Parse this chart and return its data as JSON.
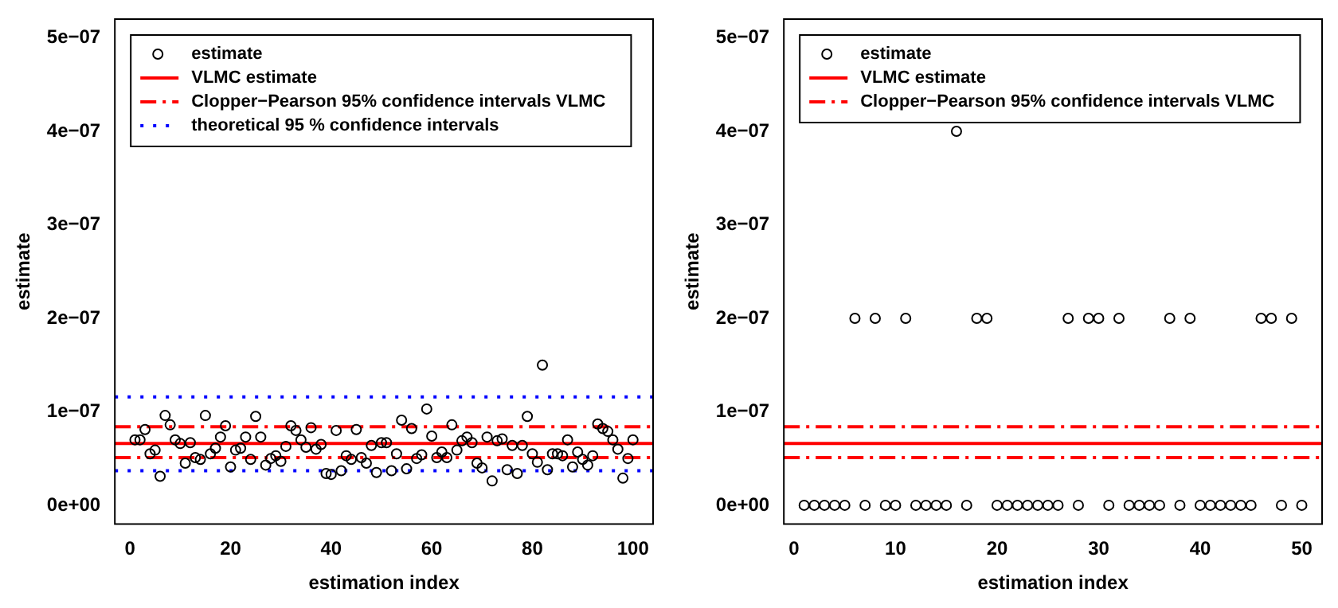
{
  "chart_data": [
    {
      "type": "scatter",
      "xlabel": "estimation index",
      "ylabel": "estimate",
      "marker": "circle",
      "grid": false,
      "legend": "top left",
      "x": [
        1,
        2,
        3,
        4,
        5,
        6,
        7,
        8,
        9,
        10,
        11,
        12,
        13,
        14,
        15,
        16,
        17,
        18,
        19,
        20,
        21,
        22,
        23,
        24,
        25,
        26,
        27,
        28,
        29,
        30,
        31,
        32,
        33,
        34,
        35,
        36,
        37,
        38,
        39,
        40,
        41,
        42,
        43,
        44,
        45,
        46,
        47,
        48,
        49,
        50,
        51,
        52,
        53,
        54,
        55,
        56,
        57,
        58,
        59,
        60,
        61,
        62,
        63,
        64,
        65,
        66,
        67,
        68,
        69,
        70,
        71,
        72,
        73,
        74,
        75,
        76,
        77,
        78,
        79,
        80,
        81,
        82,
        83,
        84,
        85,
        86,
        87,
        88,
        89,
        90,
        91,
        92,
        93,
        94,
        95,
        96,
        97,
        98,
        99,
        100
      ],
      "series": [
        {
          "name": "estimate",
          "color": "#000000",
          "values": [
            7e-08,
            7e-08,
            8.1e-08,
            5.5e-08,
            5.9e-08,
            3.1e-08,
            9.6e-08,
            8.6e-08,
            7e-08,
            6.6e-08,
            4.5e-08,
            6.7e-08,
            5.1e-08,
            4.9e-08,
            9.6e-08,
            5.5e-08,
            6.1e-08,
            7.3e-08,
            8.5e-08,
            4.1e-08,
            5.9e-08,
            6.1e-08,
            7.3e-08,
            4.9e-08,
            9.5e-08,
            7.3e-08,
            4.3e-08,
            5e-08,
            5.3e-08,
            4.7e-08,
            6.3e-08,
            8.5e-08,
            8e-08,
            7e-08,
            6.2e-08,
            8.3e-08,
            6e-08,
            6.5e-08,
            3.4e-08,
            3.3e-08,
            8e-08,
            3.7e-08,
            5.3e-08,
            4.9e-08,
            8.1e-08,
            5.1e-08,
            4.5e-08,
            6.4e-08,
            3.5e-08,
            6.7e-08,
            6.7e-08,
            3.7e-08,
            5.5e-08,
            9.1e-08,
            3.9e-08,
            8.2e-08,
            5e-08,
            5.4e-08,
            1.03e-07,
            7.4e-08,
            5.1e-08,
            5.7e-08,
            5.1e-08,
            8.6e-08,
            5.9e-08,
            6.9e-08,
            7.3e-08,
            6.7e-08,
            4.5e-08,
            4e-08,
            7.3e-08,
            2.6e-08,
            6.9e-08,
            7.1e-08,
            3.8e-08,
            6.4e-08,
            3.4e-08,
            6.4e-08,
            9.5e-08,
            5.5e-08,
            4.6e-08,
            1.5e-07,
            3.8e-08,
            5.5e-08,
            5.5e-08,
            5.3e-08,
            7e-08,
            4.1e-08,
            5.7e-08,
            4.9e-08,
            4.3e-08,
            5.3e-08,
            8.7e-08,
            8.2e-08,
            7.9e-08,
            7e-08,
            6e-08,
            2.9e-08,
            5e-08,
            7e-08
          ]
        }
      ],
      "xlim": [
        -3,
        104
      ],
      "xticks": [
        0,
        20,
        40,
        60,
        80,
        100
      ],
      "ylim": [
        -2e-08,
        5.2e-07
      ],
      "yticks": [
        {
          "value": 0,
          "label": "0e+00"
        },
        {
          "value": 1e-07,
          "label": "1e−07"
        },
        {
          "value": 2e-07,
          "label": "2e−07"
        },
        {
          "value": 3e-07,
          "label": "3e−07"
        },
        {
          "value": 4e-07,
          "label": "4e−07"
        },
        {
          "value": 5e-07,
          "label": "5e−07"
        }
      ],
      "ref_lines": [
        {
          "axis": "y",
          "value": 6.6e-08,
          "label": "VLMC estimate",
          "color": "#ff0000",
          "line_style": "solid"
        },
        {
          "axis": "y",
          "value": 8.4e-08,
          "label": "Clopper−Pearson 95% confidence intervals VLMC",
          "color": "#ff0000",
          "line_style": "dashdot"
        },
        {
          "axis": "y",
          "value": 5.1e-08,
          "label": null,
          "color": "#ff0000",
          "line_style": "dashdot"
        },
        {
          "axis": "y",
          "value": 1.16e-07,
          "label": "theoretical 95 % confidence intervals",
          "color": "#0000ff",
          "line_style": "dotted"
        },
        {
          "axis": "y",
          "value": 3.7e-08,
          "label": null,
          "color": "#0000ff",
          "line_style": "dotted"
        }
      ]
    },
    {
      "type": "scatter",
      "xlabel": "estimation index",
      "ylabel": "estimate",
      "marker": "circle",
      "grid": false,
      "legend": "top left",
      "x": [
        1,
        2,
        3,
        4,
        5,
        6,
        7,
        8,
        9,
        10,
        11,
        12,
        13,
        14,
        15,
        16,
        17,
        18,
        19,
        20,
        21,
        22,
        23,
        24,
        25,
        26,
        27,
        28,
        29,
        30,
        31,
        32,
        33,
        34,
        35,
        36,
        37,
        38,
        39,
        40,
        41,
        42,
        43,
        44,
        45,
        46,
        47,
        48,
        49,
        50
      ],
      "series": [
        {
          "name": "estimate",
          "color": "#000000",
          "values": [
            0,
            0,
            0,
            0,
            0,
            2e-07,
            0,
            2e-07,
            0,
            0,
            2e-07,
            0,
            0,
            0,
            0,
            4e-07,
            0,
            2e-07,
            2e-07,
            0,
            0,
            0,
            0,
            0,
            0,
            0,
            2e-07,
            0,
            2e-07,
            2e-07,
            0,
            2e-07,
            0,
            0,
            0,
            0,
            2e-07,
            0,
            2e-07,
            0,
            0,
            0,
            0,
            0,
            0,
            2e-07,
            2e-07,
            0,
            2e-07,
            0
          ]
        }
      ],
      "xlim": [
        -1,
        52
      ],
      "xticks": [
        0,
        10,
        20,
        30,
        40,
        50
      ],
      "ylim": [
        -2e-08,
        5.2e-07
      ],
      "yticks": [
        {
          "value": 0,
          "label": "0e+00"
        },
        {
          "value": 1e-07,
          "label": "1e−07"
        },
        {
          "value": 2e-07,
          "label": "2e−07"
        },
        {
          "value": 3e-07,
          "label": "3e−07"
        },
        {
          "value": 4e-07,
          "label": "4e−07"
        },
        {
          "value": 5e-07,
          "label": "5e−07"
        }
      ],
      "ref_lines": [
        {
          "axis": "y",
          "value": 6.6e-08,
          "label": "VLMC estimate",
          "color": "#ff0000",
          "line_style": "solid"
        },
        {
          "axis": "y",
          "value": 8.4e-08,
          "label": "Clopper−Pearson 95% confidence intervals VLMC",
          "color": "#ff0000",
          "line_style": "dashdot"
        },
        {
          "axis": "y",
          "value": 5.1e-08,
          "label": null,
          "color": "#ff0000",
          "line_style": "dashdot"
        }
      ]
    }
  ]
}
